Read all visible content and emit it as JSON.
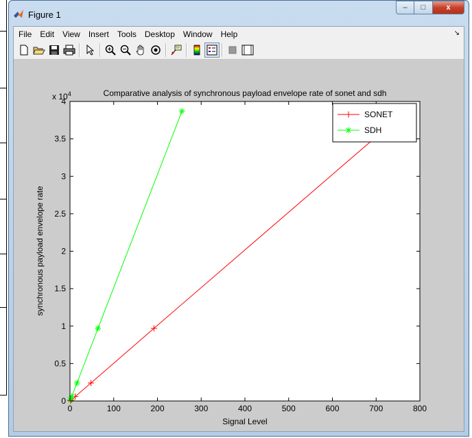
{
  "window": {
    "title": "Figure 1",
    "buttons": {
      "minimize": "–",
      "maximize": "□",
      "close": "x"
    }
  },
  "menubar": {
    "items": [
      "File",
      "Edit",
      "View",
      "Insert",
      "Tools",
      "Desktop",
      "Window",
      "Help"
    ],
    "overflow_arrow": "↘"
  },
  "toolbar": {
    "items": [
      {
        "name": "new-figure-icon"
      },
      {
        "name": "open-file-icon"
      },
      {
        "name": "save-icon"
      },
      {
        "name": "print-icon"
      },
      {
        "name": "edit-plot-arrow-icon"
      },
      {
        "name": "zoom-in-icon"
      },
      {
        "name": "zoom-out-icon"
      },
      {
        "name": "pan-hand-icon"
      },
      {
        "name": "rotate-3d-icon"
      },
      {
        "name": "data-cursor-icon"
      },
      {
        "name": "colorbar-icon"
      },
      {
        "name": "legend-icon"
      },
      {
        "name": "hide-plot-tools-icon"
      },
      {
        "name": "show-plot-tools-icon"
      }
    ]
  },
  "colors": {
    "sonet": "#ff0000",
    "sdh": "#00ff00",
    "figure_bg": "#cccccc",
    "axes_bg": "#ffffff"
  },
  "chart_data": {
    "type": "line",
    "title": "Comparative analysis of synchronous payload envelope rate  of sonet and sdh",
    "xlabel": "Signal Level",
    "ylabel": "synchronous payload envelope rate",
    "y_exponent_label": "x 10",
    "y_exponent": "4",
    "xlim": [
      0,
      800
    ],
    "ylim": [
      0,
      40000
    ],
    "x_ticks": [
      "0",
      "100",
      "200",
      "300",
      "400",
      "500",
      "600",
      "700",
      "800"
    ],
    "y_ticks": [
      "0",
      "0.5",
      "1",
      "1.5",
      "2",
      "2.5",
      "3",
      "3.5",
      "4"
    ],
    "y_tick_values": [
      0,
      5000,
      10000,
      15000,
      20000,
      25000,
      30000,
      35000,
      40000
    ],
    "legend_position": "top-right",
    "series": [
      {
        "name": "SONET",
        "marker": "+",
        "x": [
          1,
          3,
          12,
          48,
          192,
          768
        ],
        "y": [
          50,
          150,
          600,
          2400,
          9700,
          38700
        ]
      },
      {
        "name": "SDH",
        "marker": "*",
        "x": [
          1,
          4,
          16,
          64,
          256
        ],
        "y": [
          150,
          600,
          2400,
          9700,
          38700
        ]
      }
    ]
  }
}
